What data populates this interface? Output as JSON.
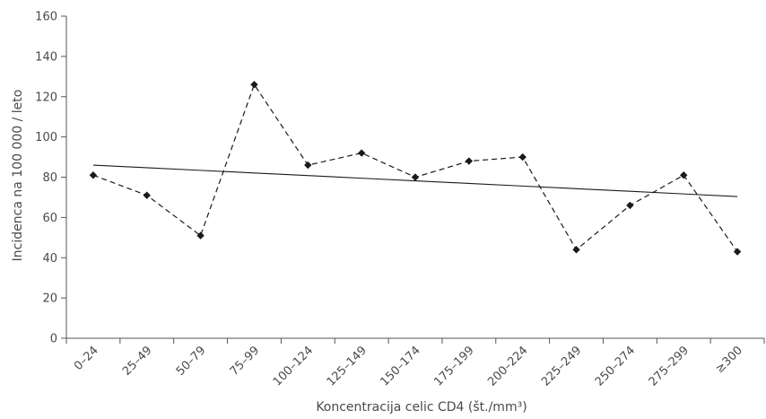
{
  "chart_data": {
    "type": "line",
    "title": "",
    "xlabel": "Koncentracija celic CD4 (št./mm³)",
    "ylabel": "Incidenca na 100 000 / leto",
    "ylim": [
      0,
      160
    ],
    "yticks": [
      "0",
      "20",
      "40",
      "60",
      "80",
      "100",
      "120",
      "140",
      "160"
    ],
    "categories": [
      "0–24",
      "25–49",
      "50–79",
      "75–99",
      "100–124",
      "125–149",
      "150–174",
      "175–199",
      "200–224",
      "225–249",
      "250–274",
      "275–299",
      "≥300"
    ],
    "series": [
      {
        "style": "dashed-with-diamond-markers",
        "values": [
          81,
          71,
          51,
          126,
          86,
          92,
          80,
          88,
          90,
          44,
          66,
          81,
          43
        ]
      },
      {
        "style": "solid-trend-line",
        "values": [
          86,
          84.7,
          83.4,
          82.1,
          80.8,
          79.5,
          78.2,
          76.9,
          75.6,
          74.3,
          73,
          71.7,
          70.4
        ]
      }
    ],
    "grid": false,
    "legend": "none",
    "colors": {
      "axis": "#555555",
      "series": "#1a1a1a",
      "text": "#4a4a4a"
    }
  }
}
